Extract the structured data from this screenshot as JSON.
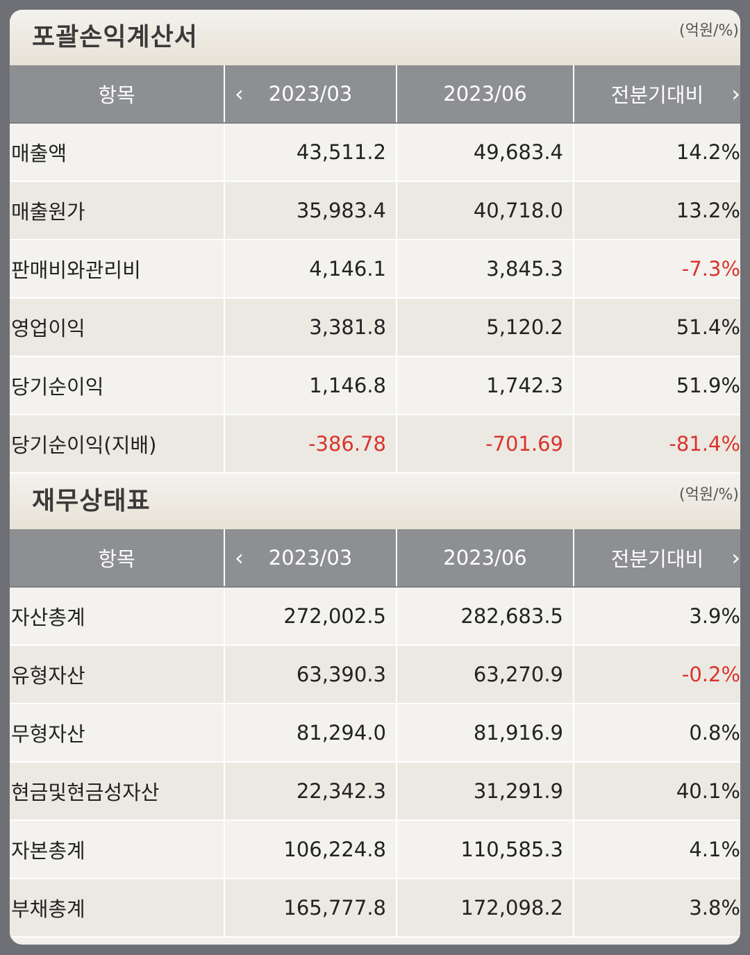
{
  "income": {
    "title": "포괄손익계산서",
    "unit": "(억원/%)",
    "headers": [
      "항목",
      "2023/03",
      "2023/06",
      "전분기대비"
    ],
    "rows": [
      {
        "item": "매출액",
        "q1": "43,511.2",
        "q2": "49,683.4",
        "chg": "14.2%"
      },
      {
        "item": "매출원가",
        "q1": "35,983.4",
        "q2": "40,718.0",
        "chg": "13.2%"
      },
      {
        "item": "판매비와관리비",
        "q1": "4,146.1",
        "q2": "3,845.3",
        "chg": "-7.3%"
      },
      {
        "item": "영업이익",
        "q1": "3,381.8",
        "q2": "5,120.2",
        "chg": "51.4%"
      },
      {
        "item": "당기순이익",
        "q1": "1,146.8",
        "q2": "1,742.3",
        "chg": "51.9%"
      },
      {
        "item": "당기순이익(지배)",
        "q1": "-386.78",
        "q2": "-701.69",
        "chg": "-81.4%"
      }
    ]
  },
  "balance": {
    "title": "재무상태표",
    "unit": "(억원/%)",
    "headers": [
      "항목",
      "2023/03",
      "2023/06",
      "전분기대비"
    ],
    "rows": [
      {
        "item": "자산총계",
        "q1": "272,002.5",
        "q2": "282,683.5",
        "chg": "3.9%"
      },
      {
        "item": "유형자산",
        "q1": "63,390.3",
        "q2": "63,270.9",
        "chg": "-0.2%"
      },
      {
        "item": "무형자산",
        "q1": "81,294.0",
        "q2": "81,916.9",
        "chg": "0.8%"
      },
      {
        "item": "현금및현금성자산",
        "q1": "22,342.3",
        "q2": "31,291.9",
        "chg": "40.1%"
      },
      {
        "item": "자본총계",
        "q1": "106,224.8",
        "q2": "110,585.3",
        "chg": "4.1%"
      },
      {
        "item": "부채총계",
        "q1": "165,777.8",
        "q2": "172,098.2",
        "chg": "3.8%"
      }
    ]
  },
  "icons": {
    "prev": "‹",
    "next": "›"
  },
  "colors": {
    "negative": "#d9342b",
    "header_bg": "#8d8f93"
  }
}
